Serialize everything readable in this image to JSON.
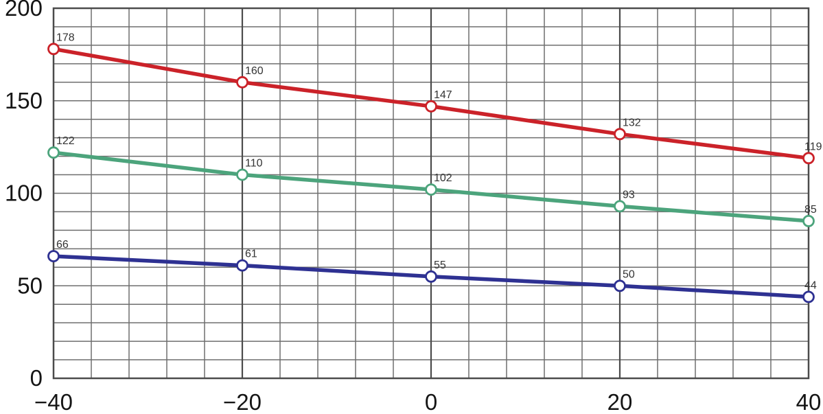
{
  "chart_data": {
    "type": "line",
    "title": "",
    "xlabel": "",
    "ylabel": "",
    "x": [
      -40,
      -20,
      0,
      20,
      40
    ],
    "x_tick_labels": [
      "−40",
      "−20",
      "0",
      "20",
      "40"
    ],
    "y_ticks": [
      0,
      50,
      100,
      150,
      200
    ],
    "y_tick_labels": [
      "0",
      "50",
      "100",
      "150",
      "200"
    ],
    "xlim": [
      -40,
      40
    ],
    "ylim": [
      0,
      200
    ],
    "x_major_step": 20,
    "x_minor_step": 4,
    "y_minor_step": 10,
    "grid": true,
    "legend_position": "none",
    "series": [
      {
        "name": "red-series",
        "color": "#cb2229",
        "values": [
          178,
          160,
          147,
          132,
          119
        ],
        "point_labels": [
          "178",
          "160",
          "147",
          "132",
          "119"
        ]
      },
      {
        "name": "green-series",
        "color": "#4ca47c",
        "values": [
          122,
          110,
          102,
          93,
          85
        ],
        "point_labels": [
          "122",
          "110",
          "102",
          "93",
          "85"
        ]
      },
      {
        "name": "blue-series",
        "color": "#2e3192",
        "values": [
          66,
          61,
          55,
          50,
          44
        ],
        "point_labels": [
          "66",
          "61",
          "55",
          "50",
          "44"
        ]
      }
    ],
    "colors": {
      "grid_minor": "#6e6e6e",
      "grid_major": "#4b4b4b",
      "border": "#4b4b4b",
      "tick_label": "#151515",
      "point_label": "#333333",
      "marker_fill": "#ffffff",
      "background": "#ffffff"
    }
  }
}
